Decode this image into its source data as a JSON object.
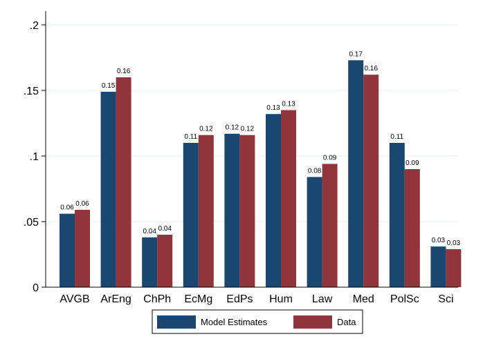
{
  "chart_data": {
    "type": "bar",
    "title": "",
    "xlabel": "",
    "ylabel": "",
    "ylim": [
      0,
      0.2
    ],
    "yticks": [
      0,
      0.05,
      0.1,
      0.15,
      0.2
    ],
    "ytick_labels": [
      "0",
      ".05",
      ".1",
      ".15",
      ".2"
    ],
    "grid": true,
    "legend_position": "bottom",
    "categories": [
      "AVGB",
      "ArEng",
      "ChPh",
      "EcMg",
      "EdPs",
      "Hum",
      "Law",
      "Med",
      "PolSc",
      "Sci"
    ],
    "series": [
      {
        "name": "Model Estimates",
        "color": "#1a476f",
        "values": [
          0.056,
          0.149,
          0.038,
          0.11,
          0.117,
          0.132,
          0.084,
          0.173,
          0.11,
          0.031
        ],
        "labels": [
          "0.06",
          "0.15",
          "0.04",
          "0.11",
          "0.12",
          "0.13",
          "0.08",
          "0.17",
          "0.11",
          "0.03"
        ]
      },
      {
        "name": "Data",
        "color": "#90353b",
        "values": [
          0.059,
          0.16,
          0.04,
          0.116,
          0.116,
          0.135,
          0.094,
          0.162,
          0.09,
          0.029
        ],
        "labels": [
          "0.06",
          "0.16",
          "0.04",
          "0.12",
          "0.12",
          "0.13",
          "0.09",
          "0.16",
          "0.09",
          "0.03"
        ]
      }
    ]
  }
}
